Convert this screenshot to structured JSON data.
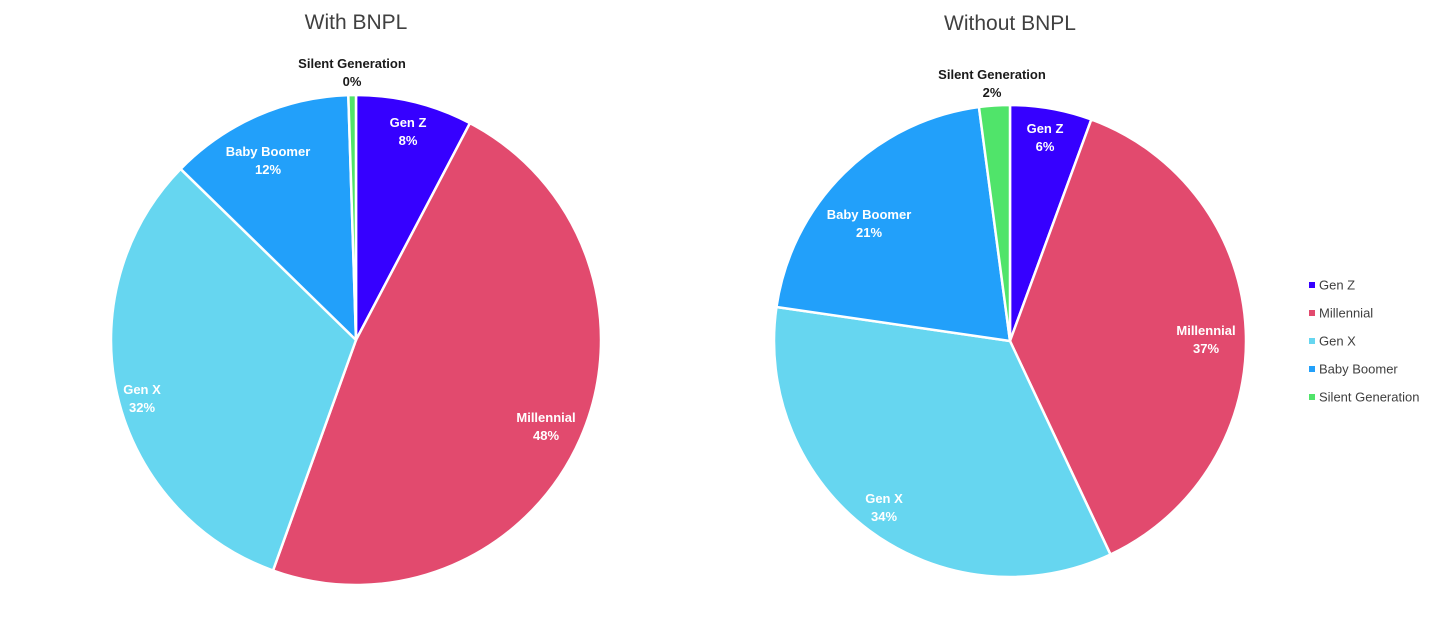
{
  "chart_data": [
    {
      "type": "pie",
      "title": "With BNPL",
      "categories": [
        "Gen Z",
        "Millennial",
        "Gen X",
        "Baby Boomer",
        "Silent Generation"
      ],
      "values": [
        7.7,
        47.8,
        31.8,
        12.2,
        0.5
      ],
      "value_labels": [
        "8%",
        "48%",
        "32%",
        "12%",
        "0%"
      ],
      "colors": [
        "#3600FF",
        "#E24A6E",
        "#66D6F0",
        "#22A0FA",
        "#50E46A"
      ],
      "start_angle_deg": 0,
      "direction": "clockwise"
    },
    {
      "type": "pie",
      "title": "Without BNPL",
      "categories": [
        "Gen Z",
        "Millennial",
        "Gen X",
        "Baby Boomer",
        "Silent Generation"
      ],
      "values": [
        5.6,
        37.4,
        34.3,
        20.6,
        2.1
      ],
      "value_labels": [
        "6%",
        "37%",
        "34%",
        "21%",
        "2%"
      ],
      "colors": [
        "#3600FF",
        "#E24A6E",
        "#66D6F0",
        "#22A0FA",
        "#50E46A"
      ],
      "start_angle_deg": 0,
      "direction": "clockwise"
    }
  ],
  "legend": {
    "position": "right",
    "items": [
      "Gen Z",
      "Millennial",
      "Gen X",
      "Baby Boomer",
      "Silent Generation"
    ],
    "colors": [
      "#3600FF",
      "#E24A6E",
      "#66D6F0",
      "#22A0FA",
      "#50E46A"
    ]
  }
}
